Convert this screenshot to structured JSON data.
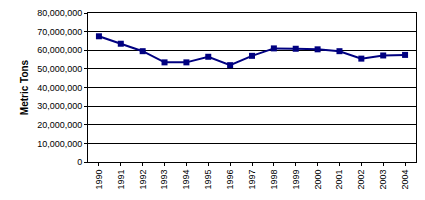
{
  "chart_data": {
    "type": "line",
    "y_label": "Metric Tons",
    "categories": [
      "1990",
      "1991",
      "1992",
      "1993",
      "1994",
      "1995",
      "1996",
      "1997",
      "1998",
      "1999",
      "2000",
      "2001",
      "2002",
      "2003",
      "2004"
    ],
    "values": [
      67500000,
      63500000,
      59500000,
      53500000,
      53500000,
      56500000,
      52000000,
      57000000,
      61000000,
      60800000,
      60500000,
      59500000,
      55500000,
      57200000,
      57500000
    ],
    "color": "#000080",
    "marker": "square",
    "line_style": "solid",
    "ylim": [
      0,
      80000000
    ],
    "yticks": [
      0,
      {
        "value": 10000000,
        "label": "10,000,000"
      },
      {
        "value": 20000000,
        "label": "20,000,000"
      },
      {
        "value": 30000000,
        "label": "30,000,000"
      },
      {
        "value": 40000000,
        "label": "40,000,000"
      },
      {
        "value": 50000000,
        "label": "50,000,000"
      },
      {
        "value": 60000000,
        "label": "60,000,000"
      },
      {
        "value": 70000000,
        "label": "70,000,000"
      },
      {
        "value": 80000000,
        "label": "80,000,000"
      }
    ],
    "grid": true
  }
}
